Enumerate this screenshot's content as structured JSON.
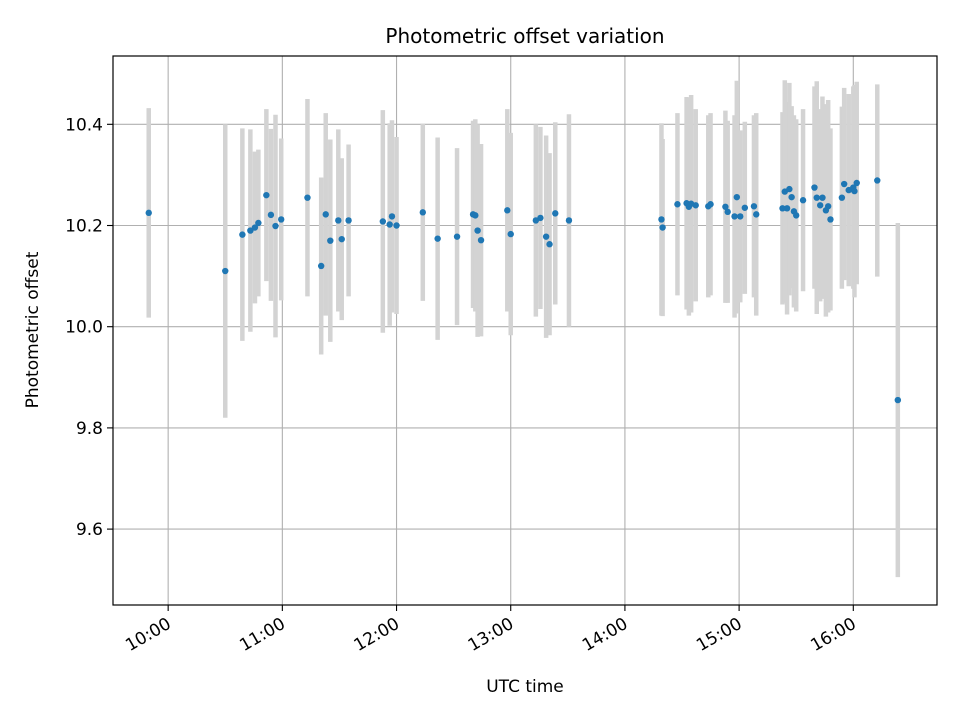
{
  "chart_data": {
    "type": "scatter",
    "title": "Photometric offset variation",
    "xlabel": "UTC time",
    "ylabel": "Photometric offset",
    "grid": true,
    "x_unit": "hours (UTC)",
    "xlim": [
      9.517,
      16.733
    ],
    "ylim": [
      9.45,
      10.535
    ],
    "x_ticks": [
      {
        "value": 10,
        "label": "10:00"
      },
      {
        "value": 11,
        "label": "11:00"
      },
      {
        "value": 12,
        "label": "12:00"
      },
      {
        "value": 13,
        "label": "13:00"
      },
      {
        "value": 14,
        "label": "14:00"
      },
      {
        "value": 15,
        "label": "15:00"
      },
      {
        "value": 16,
        "label": "16:00"
      }
    ],
    "y_ticks": [
      {
        "value": 9.6,
        "label": "9.6"
      },
      {
        "value": 9.8,
        "label": "9.8"
      },
      {
        "value": 10.0,
        "label": "10.0"
      },
      {
        "value": 10.2,
        "label": "10.2"
      },
      {
        "value": 10.4,
        "label": "10.4"
      }
    ],
    "colors": {
      "marker": "#1f77b4",
      "errorbar": "#d3d3d3",
      "grid": "#b0b0b0"
    },
    "series": [
      {
        "name": "offset",
        "x": [
          9.83,
          10.5,
          10.65,
          10.72,
          10.76,
          10.79,
          10.86,
          10.9,
          10.94,
          10.99,
          11.22,
          11.34,
          11.38,
          11.42,
          11.49,
          11.52,
          11.58,
          11.88,
          11.94,
          11.96,
          12.0,
          12.23,
          12.36,
          12.53,
          12.67,
          12.69,
          12.71,
          12.74,
          12.97,
          13.0,
          13.22,
          13.26,
          13.31,
          13.34,
          13.39,
          13.51,
          14.32,
          14.33,
          14.46,
          14.54,
          14.56,
          14.58,
          14.62,
          14.73,
          14.75,
          14.88,
          14.9,
          14.96,
          14.98,
          15.01,
          15.05,
          15.13,
          15.15,
          15.38,
          15.4,
          15.42,
          15.44,
          15.46,
          15.48,
          15.5,
          15.56,
          15.66,
          15.68,
          15.71,
          15.73,
          15.76,
          15.78,
          15.8,
          15.9,
          15.92,
          15.96,
          16.0,
          16.01,
          16.03,
          16.21,
          16.39
        ],
        "y": [
          10.225,
          10.11,
          10.182,
          10.19,
          10.196,
          10.205,
          10.26,
          10.221,
          10.199,
          10.212,
          10.255,
          10.12,
          10.222,
          10.17,
          10.21,
          10.173,
          10.21,
          10.208,
          10.202,
          10.218,
          10.2,
          10.226,
          10.174,
          10.178,
          10.222,
          10.22,
          10.19,
          10.171,
          10.23,
          10.183,
          10.21,
          10.215,
          10.178,
          10.163,
          10.224,
          10.21,
          10.212,
          10.196,
          10.242,
          10.244,
          10.237,
          10.243,
          10.24,
          10.238,
          10.242,
          10.237,
          10.227,
          10.218,
          10.256,
          10.218,
          10.235,
          10.238,
          10.222,
          10.234,
          10.267,
          10.234,
          10.272,
          10.256,
          10.228,
          10.22,
          10.25,
          10.275,
          10.255,
          10.24,
          10.255,
          10.23,
          10.238,
          10.212,
          10.255,
          10.282,
          10.27,
          10.275,
          10.268,
          10.284,
          10.289,
          9.855
        ],
        "y_err": [
          0.207,
          0.29,
          0.21,
          0.2,
          0.15,
          0.145,
          0.17,
          0.17,
          0.22,
          0.16,
          0.195,
          0.175,
          0.2,
          0.2,
          0.18,
          0.16,
          0.15,
          0.22,
          0.2,
          0.19,
          0.175,
          0.175,
          0.2,
          0.175,
          0.185,
          0.19,
          0.21,
          0.19,
          0.2,
          0.2,
          0.19,
          0.18,
          0.2,
          0.18,
          0.18,
          0.21,
          0.19,
          0.175,
          0.18,
          0.21,
          0.215,
          0.215,
          0.19,
          0.18,
          0.18,
          0.19,
          0.18,
          0.2,
          0.23,
          0.17,
          0.17,
          0.18,
          0.2,
          0.19,
          0.22,
          0.21,
          0.21,
          0.18,
          0.19,
          0.19,
          0.18,
          0.2,
          0.23,
          0.19,
          0.2,
          0.21,
          0.21,
          0.18,
          0.18,
          0.19,
          0.19,
          0.2,
          0.21,
          0.2,
          0.19,
          0.35
        ]
      }
    ]
  }
}
